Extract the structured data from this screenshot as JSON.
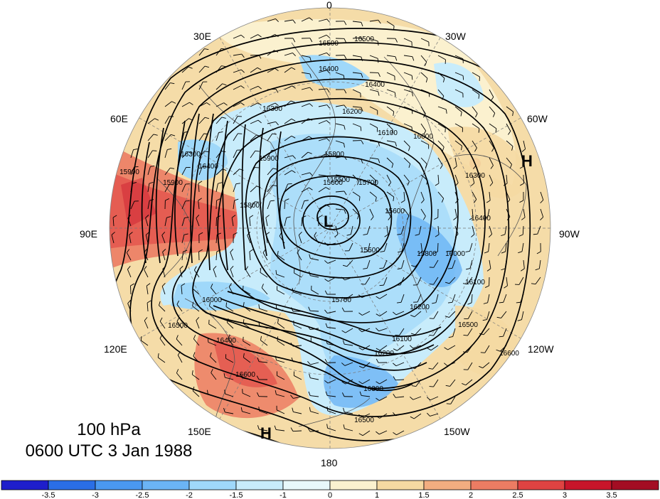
{
  "map": {
    "title_level": "100 hPa",
    "title_time": "0600 UTC 3 Jan 1988",
    "longitude_labels": [
      {
        "id": "lon-0",
        "text": "0"
      },
      {
        "id": "lon-30e",
        "text": "30E"
      },
      {
        "id": "lon-30w",
        "text": "30W"
      },
      {
        "id": "lon-60e",
        "text": "60E"
      },
      {
        "id": "lon-60w",
        "text": "60W"
      },
      {
        "id": "lon-90e",
        "text": "90E"
      },
      {
        "id": "lon-90w",
        "text": "90W"
      },
      {
        "id": "lon-120e",
        "text": "120E"
      },
      {
        "id": "lon-120w",
        "text": "120W"
      },
      {
        "id": "lon-150e",
        "text": "150E"
      },
      {
        "id": "lon-150w",
        "text": "150W"
      },
      {
        "id": "lon-180",
        "text": "180"
      }
    ],
    "pressure_systems": [
      {
        "id": "low-center",
        "text": "L"
      },
      {
        "id": "high-atlantic",
        "text": "H"
      },
      {
        "id": "high-pacific",
        "text": "H"
      }
    ],
    "contour_labels": [
      "16500",
      "16500",
      "16400",
      "16400",
      "16300",
      "16200",
      "16100",
      "16000",
      "15900",
      "15800",
      "15700",
      "15600",
      "15500",
      "15600",
      "15800",
      "16000",
      "16100",
      "16300",
      "16400",
      "16500",
      "16600",
      "16600",
      "16400",
      "16300",
      "16200",
      "16100",
      "15700",
      "15800",
      "15900",
      "15900",
      "16000",
      "16200",
      "16300",
      "16400",
      "16500",
      "16500",
      "15500"
    ],
    "colorbar": {
      "ticks": [
        "-3.5",
        "-3",
        "-2.5",
        "-2",
        "-1.5",
        "-1",
        "0",
        "1",
        "1.5",
        "2",
        "2.5",
        "3",
        "3.5"
      ],
      "colors": [
        "#1e1ecb",
        "#2a6ee6",
        "#4a98f0",
        "#6bb4f5",
        "#9fd8fa",
        "#c8ecfb",
        "#e8f8fb",
        "#fbf1cf",
        "#f5d9a2",
        "#f2ad80",
        "#ec7c63",
        "#df4342",
        "#c8152a",
        "#a30d23"
      ]
    }
  }
}
